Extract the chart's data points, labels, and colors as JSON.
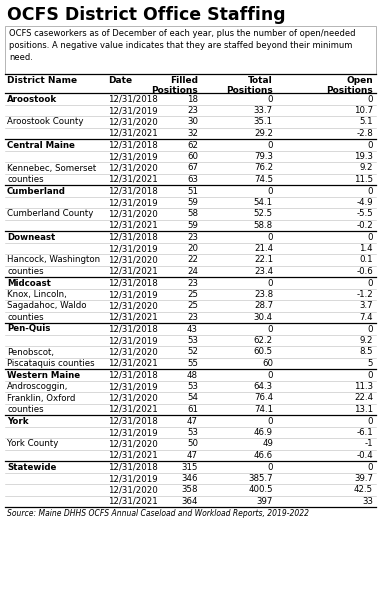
{
  "title": "OCFS District Office Staffing",
  "subtitle": "OCFS caseworkers as of December of each year, plus the number of open/needed\npositions. A negative value indicates that they are staffed beyond their minimum\nneed.",
  "col_headers": [
    "District Name",
    "Date",
    "Filled\nPositions",
    "Total\nPositions",
    "Open\nPositions"
  ],
  "source": "Source: Maine DHHS OCFS Annual Caseload and Workload Reports, 2019-2022",
  "rows": [
    {
      "district": "Aroostook",
      "date": "12/31/2018",
      "filled": "18",
      "total": "0",
      "open": "0",
      "bold": true
    },
    {
      "district": "",
      "date": "12/31/2019",
      "filled": "23",
      "total": "33.7",
      "open": "10.7",
      "bold": false
    },
    {
      "district": "Aroostook County",
      "date": "12/31/2020",
      "filled": "30",
      "total": "35.1",
      "open": "5.1",
      "bold": false
    },
    {
      "district": "",
      "date": "12/31/2021",
      "filled": "32",
      "total": "29.2",
      "open": "-2.8",
      "bold": false
    },
    {
      "district": "Central Maine",
      "date": "12/31/2018",
      "filled": "62",
      "total": "0",
      "open": "0",
      "bold": true
    },
    {
      "district": "",
      "date": "12/31/2019",
      "filled": "60",
      "total": "79.3",
      "open": "19.3",
      "bold": false
    },
    {
      "district": "Kennebec, Somerset",
      "date": "12/31/2020",
      "filled": "67",
      "total": "76.2",
      "open": "9.2",
      "bold": false
    },
    {
      "district": "counties",
      "date": "12/31/2021",
      "filled": "63",
      "total": "74.5",
      "open": "11.5",
      "bold": false
    },
    {
      "district": "Cumberland",
      "date": "12/31/2018",
      "filled": "51",
      "total": "0",
      "open": "0",
      "bold": true
    },
    {
      "district": "",
      "date": "12/31/2019",
      "filled": "59",
      "total": "54.1",
      "open": "-4.9",
      "bold": false
    },
    {
      "district": "Cumberland County",
      "date": "12/31/2020",
      "filled": "58",
      "total": "52.5",
      "open": "-5.5",
      "bold": false
    },
    {
      "district": "",
      "date": "12/31/2021",
      "filled": "59",
      "total": "58.8",
      "open": "-0.2",
      "bold": false
    },
    {
      "district": "Downeast",
      "date": "12/31/2018",
      "filled": "23",
      "total": "0",
      "open": "0",
      "bold": true
    },
    {
      "district": "",
      "date": "12/31/2019",
      "filled": "20",
      "total": "21.4",
      "open": "1.4",
      "bold": false
    },
    {
      "district": "Hancock, Washington",
      "date": "12/31/2020",
      "filled": "22",
      "total": "22.1",
      "open": "0.1",
      "bold": false
    },
    {
      "district": "counties",
      "date": "12/31/2021",
      "filled": "24",
      "total": "23.4",
      "open": "-0.6",
      "bold": false
    },
    {
      "district": "Midcoast",
      "date": "12/31/2018",
      "filled": "23",
      "total": "0",
      "open": "0",
      "bold": true
    },
    {
      "district": "Knox, Lincoln,",
      "date": "12/31/2019",
      "filled": "25",
      "total": "23.8",
      "open": "-1.2",
      "bold": false
    },
    {
      "district": "Sagadahoc, Waldo",
      "date": "12/31/2020",
      "filled": "25",
      "total": "28.7",
      "open": "3.7",
      "bold": false
    },
    {
      "district": "counties",
      "date": "12/31/2021",
      "filled": "23",
      "total": "30.4",
      "open": "7.4",
      "bold": false
    },
    {
      "district": "Pen-Quis",
      "date": "12/31/2018",
      "filled": "43",
      "total": "0",
      "open": "0",
      "bold": true
    },
    {
      "district": "",
      "date": "12/31/2019",
      "filled": "53",
      "total": "62.2",
      "open": "9.2",
      "bold": false
    },
    {
      "district": "Penobscot,",
      "date": "12/31/2020",
      "filled": "52",
      "total": "60.5",
      "open": "8.5",
      "bold": false
    },
    {
      "district": "Piscataquis counties",
      "date": "12/31/2021",
      "filled": "55",
      "total": "60",
      "open": "5",
      "bold": false
    },
    {
      "district": "Western Maine",
      "date": "12/31/2018",
      "filled": "48",
      "total": "0",
      "open": "0",
      "bold": true
    },
    {
      "district": "Androscoggin,",
      "date": "12/31/2019",
      "filled": "53",
      "total": "64.3",
      "open": "11.3",
      "bold": false
    },
    {
      "district": "Franklin, Oxford",
      "date": "12/31/2020",
      "filled": "54",
      "total": "76.4",
      "open": "22.4",
      "bold": false
    },
    {
      "district": "counties",
      "date": "12/31/2021",
      "filled": "61",
      "total": "74.1",
      "open": "13.1",
      "bold": false
    },
    {
      "district": "York",
      "date": "12/31/2018",
      "filled": "47",
      "total": "0",
      "open": "0",
      "bold": true
    },
    {
      "district": "",
      "date": "12/31/2019",
      "filled": "53",
      "total": "46.9",
      "open": "-6.1",
      "bold": false
    },
    {
      "district": "York County",
      "date": "12/31/2020",
      "filled": "50",
      "total": "49",
      "open": "-1",
      "bold": false
    },
    {
      "district": "",
      "date": "12/31/2021",
      "filled": "47",
      "total": "46.6",
      "open": "-0.4",
      "bold": false
    },
    {
      "district": "Statewide",
      "date": "12/31/2018",
      "filled": "315",
      "total": "0",
      "open": "0",
      "bold": true
    },
    {
      "district": "",
      "date": "12/31/2019",
      "filled": "346",
      "total": "385.7",
      "open": "39.7",
      "bold": false
    },
    {
      "district": "",
      "date": "12/31/2020",
      "filled": "358",
      "total": "400.5",
      "open": "42.5",
      "bold": false
    },
    {
      "district": "",
      "date": "12/31/2021",
      "filled": "364",
      "total": "397",
      "open": "33",
      "bold": false
    }
  ],
  "group_start_rows": [
    0,
    4,
    8,
    12,
    16,
    20,
    24,
    28,
    32
  ]
}
